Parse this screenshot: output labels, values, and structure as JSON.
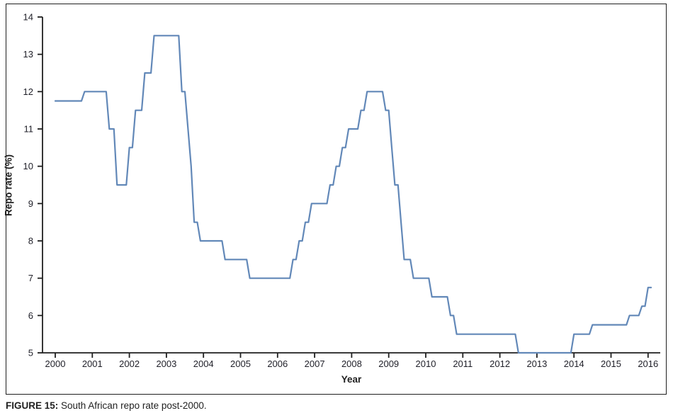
{
  "figure": {
    "caption_prefix": "FIGURE 15:",
    "caption_text": " South African repo rate post-2000."
  },
  "chart_data": {
    "type": "line",
    "title": "",
    "xlabel": "Year",
    "ylabel": "Repo rate (%)",
    "x_ticks": [
      2000,
      2001,
      2002,
      2003,
      2004,
      2005,
      2006,
      2007,
      2008,
      2009,
      2010,
      2011,
      2012,
      2013,
      2014,
      2015,
      2016
    ],
    "y_ticks": [
      5,
      6,
      7,
      8,
      9,
      10,
      11,
      12,
      13,
      14
    ],
    "xlim": [
      1999.66,
      2016.33
    ],
    "ylim": [
      5,
      14
    ],
    "grid": false,
    "legend": "none",
    "line_color": "#6288b8",
    "axis_color": "#1f1f1f",
    "series": [
      {
        "name": "Repo rate (%)",
        "points": [
          [
            2000.0,
            11.75
          ],
          [
            2000.708,
            11.75
          ],
          [
            2000.792,
            12.0
          ],
          [
            2001.375,
            12.0
          ],
          [
            2001.458,
            11.0
          ],
          [
            2001.583,
            11.0
          ],
          [
            2001.667,
            9.5
          ],
          [
            2001.917,
            9.5
          ],
          [
            2002.0,
            10.5
          ],
          [
            2002.083,
            10.5
          ],
          [
            2002.167,
            11.5
          ],
          [
            2002.333,
            11.5
          ],
          [
            2002.417,
            12.5
          ],
          [
            2002.583,
            12.5
          ],
          [
            2002.667,
            13.5
          ],
          [
            2003.333,
            13.5
          ],
          [
            2003.417,
            12.0
          ],
          [
            2003.5,
            12.0
          ],
          [
            2003.583,
            11.0
          ],
          [
            2003.667,
            10.0
          ],
          [
            2003.75,
            8.5
          ],
          [
            2003.833,
            8.5
          ],
          [
            2003.917,
            8.0
          ],
          [
            2004.5,
            8.0
          ],
          [
            2004.583,
            7.5
          ],
          [
            2005.167,
            7.5
          ],
          [
            2005.25,
            7.0
          ],
          [
            2006.333,
            7.0
          ],
          [
            2006.417,
            7.5
          ],
          [
            2006.5,
            7.5
          ],
          [
            2006.583,
            8.0
          ],
          [
            2006.667,
            8.0
          ],
          [
            2006.75,
            8.5
          ],
          [
            2006.833,
            8.5
          ],
          [
            2006.917,
            9.0
          ],
          [
            2007.333,
            9.0
          ],
          [
            2007.417,
            9.5
          ],
          [
            2007.5,
            9.5
          ],
          [
            2007.583,
            10.0
          ],
          [
            2007.667,
            10.0
          ],
          [
            2007.75,
            10.5
          ],
          [
            2007.833,
            10.5
          ],
          [
            2007.917,
            11.0
          ],
          [
            2008.167,
            11.0
          ],
          [
            2008.25,
            11.5
          ],
          [
            2008.333,
            11.5
          ],
          [
            2008.417,
            12.0
          ],
          [
            2008.833,
            12.0
          ],
          [
            2008.917,
            11.5
          ],
          [
            2009.0,
            11.5
          ],
          [
            2009.083,
            10.5
          ],
          [
            2009.167,
            9.5
          ],
          [
            2009.25,
            9.5
          ],
          [
            2009.333,
            8.5
          ],
          [
            2009.417,
            7.5
          ],
          [
            2009.583,
            7.5
          ],
          [
            2009.667,
            7.0
          ],
          [
            2010.083,
            7.0
          ],
          [
            2010.167,
            6.5
          ],
          [
            2010.583,
            6.5
          ],
          [
            2010.667,
            6.0
          ],
          [
            2010.75,
            6.0
          ],
          [
            2010.833,
            5.5
          ],
          [
            2012.417,
            5.5
          ],
          [
            2012.5,
            5.0
          ],
          [
            2013.917,
            5.0
          ],
          [
            2014.0,
            5.5
          ],
          [
            2014.417,
            5.5
          ],
          [
            2014.5,
            5.75
          ],
          [
            2015.417,
            5.75
          ],
          [
            2015.5,
            6.0
          ],
          [
            2015.75,
            6.0
          ],
          [
            2015.833,
            6.25
          ],
          [
            2015.917,
            6.25
          ],
          [
            2016.0,
            6.75
          ],
          [
            2016.083,
            6.75
          ]
        ]
      }
    ]
  }
}
